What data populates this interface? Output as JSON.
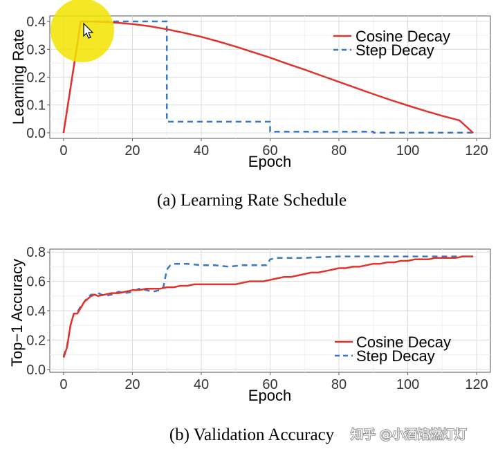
{
  "chart_data": [
    {
      "type": "line",
      "caption": "(a) Learning Rate Schedule",
      "xlabel": "Epoch",
      "ylabel": "Learning Rate",
      "xlim": [
        -4,
        124
      ],
      "ylim": [
        -0.02,
        0.42
      ],
      "x_ticks": [
        0,
        20,
        40,
        60,
        80,
        100,
        120
      ],
      "y_ticks": [
        0.0,
        0.1,
        0.2,
        0.3,
        0.4
      ],
      "y_tick_labels": [
        "0.0",
        "0.1",
        "0.2",
        "0.3",
        "0.4"
      ],
      "grid": true,
      "legend_position": "top-right",
      "series": [
        {
          "name": "Cosine Decay",
          "color": "#e0332b",
          "style": "solid",
          "x": [
            0,
            5,
            10,
            15,
            20,
            25,
            30,
            35,
            40,
            45,
            50,
            55,
            60,
            65,
            70,
            75,
            80,
            85,
            90,
            95,
            100,
            105,
            110,
            115,
            119
          ],
          "y": [
            0.0,
            0.4,
            0.399,
            0.396,
            0.391,
            0.383,
            0.372,
            0.359,
            0.345,
            0.328,
            0.31,
            0.29,
            0.27,
            0.248,
            0.227,
            0.205,
            0.183,
            0.161,
            0.139,
            0.118,
            0.098,
            0.079,
            0.061,
            0.045,
            0.0
          ]
        },
        {
          "name": "Step Decay",
          "color": "#3a78c2",
          "style": "dashed",
          "x": [
            0,
            5,
            30,
            30,
            60,
            60,
            90,
            90,
            119
          ],
          "y": [
            0.0,
            0.4,
            0.4,
            0.04,
            0.04,
            0.004,
            0.004,
            0.0004,
            0.0004
          ]
        }
      ]
    },
    {
      "type": "line",
      "caption": "(b) Validation Accuracy",
      "xlabel": "Epoch",
      "ylabel": "Top−1 Accuracy",
      "xlim": [
        -4,
        124
      ],
      "ylim": [
        -0.02,
        0.82
      ],
      "x_ticks": [
        0,
        20,
        40,
        60,
        80,
        100,
        120
      ],
      "y_ticks": [
        0.0,
        0.2,
        0.4,
        0.6,
        0.8
      ],
      "y_tick_labels": [
        "0.0",
        "0.2",
        "0.4",
        "0.6",
        "0.8"
      ],
      "grid": true,
      "legend_position": "bottom-right",
      "series": [
        {
          "name": "Cosine Decay",
          "color": "#e0332b",
          "style": "solid",
          "x": [
            0,
            1,
            2,
            3,
            4,
            5,
            6,
            7,
            8,
            9,
            10,
            12,
            14,
            16,
            18,
            20,
            22,
            24,
            26,
            28,
            30,
            32,
            34,
            36,
            38,
            40,
            42,
            44,
            46,
            48,
            50,
            52,
            54,
            56,
            58,
            60,
            62,
            64,
            66,
            68,
            70,
            72,
            74,
            76,
            78,
            80,
            82,
            84,
            86,
            88,
            90,
            92,
            94,
            96,
            98,
            100,
            102,
            104,
            106,
            108,
            110,
            112,
            114,
            116,
            118,
            119
          ],
          "y": [
            0.08,
            0.15,
            0.3,
            0.38,
            0.38,
            0.42,
            0.46,
            0.48,
            0.5,
            0.51,
            0.5,
            0.51,
            0.52,
            0.52,
            0.53,
            0.54,
            0.54,
            0.55,
            0.55,
            0.55,
            0.56,
            0.56,
            0.57,
            0.57,
            0.58,
            0.58,
            0.58,
            0.58,
            0.58,
            0.58,
            0.58,
            0.59,
            0.6,
            0.6,
            0.6,
            0.61,
            0.62,
            0.63,
            0.63,
            0.64,
            0.65,
            0.66,
            0.66,
            0.67,
            0.68,
            0.69,
            0.69,
            0.7,
            0.7,
            0.71,
            0.72,
            0.72,
            0.73,
            0.73,
            0.74,
            0.74,
            0.75,
            0.75,
            0.75,
            0.76,
            0.76,
            0.76,
            0.76,
            0.77,
            0.77,
            0.77
          ]
        },
        {
          "name": "Step Decay",
          "color": "#3a78c2",
          "style": "dashed",
          "x": [
            0,
            1,
            2,
            3,
            4,
            5,
            6,
            7,
            8,
            9,
            10,
            12,
            14,
            16,
            18,
            20,
            22,
            24,
            26,
            28,
            29,
            30,
            31,
            32,
            36,
            40,
            44,
            48,
            52,
            56,
            59,
            60,
            62,
            70,
            80,
            90,
            100,
            110,
            119
          ],
          "y": [
            0.09,
            0.16,
            0.3,
            0.38,
            0.39,
            0.43,
            0.46,
            0.49,
            0.51,
            0.51,
            0.52,
            0.5,
            0.51,
            0.53,
            0.52,
            0.53,
            0.55,
            0.54,
            0.53,
            0.54,
            0.56,
            0.68,
            0.71,
            0.72,
            0.72,
            0.71,
            0.71,
            0.7,
            0.71,
            0.71,
            0.71,
            0.75,
            0.76,
            0.76,
            0.77,
            0.77,
            0.77,
            0.77,
            0.77
          ]
        }
      ]
    }
  ],
  "watermark": {
    "text": "知乎 @小酒馆燃灯灯",
    "color": "#ffffff"
  },
  "cursor_highlight": {
    "color": "#f2e400"
  }
}
